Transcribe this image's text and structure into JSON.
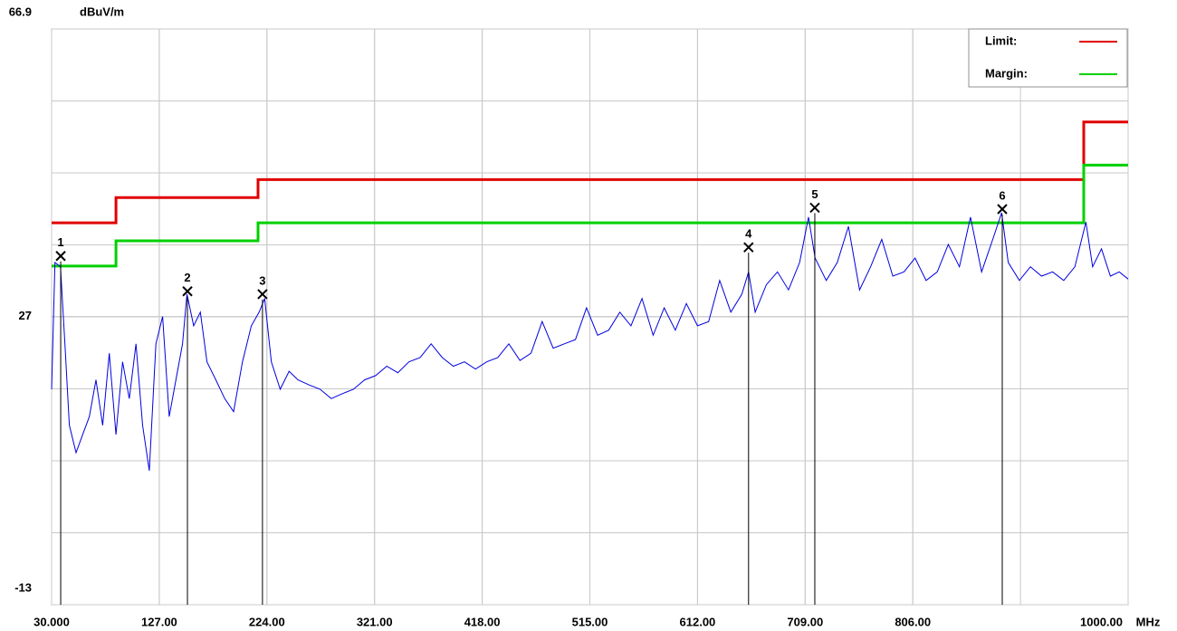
{
  "chart_data": {
    "type": "line",
    "y_unit": "dBuV/m",
    "x_unit": "MHz",
    "xlim": [
      30,
      1000
    ],
    "ylim": [
      -13,
      66.9
    ],
    "yticks": [
      -13,
      27,
      66.9
    ],
    "xticks": [
      {
        "value": 30,
        "label": "30.000"
      },
      {
        "value": 127,
        "label": "127.00"
      },
      {
        "value": 224,
        "label": "224.00"
      },
      {
        "value": 321,
        "label": "321.00"
      },
      {
        "value": 418,
        "label": "418.00"
      },
      {
        "value": 515,
        "label": "515.00"
      },
      {
        "value": 612,
        "label": "612.00"
      },
      {
        "value": 709,
        "label": "709.00"
      },
      {
        "value": 806,
        "label": "806.00"
      },
      {
        "value": 1000,
        "label": "1000.00"
      }
    ],
    "grid": true,
    "legend": "upper right",
    "trace": {
      "color": "#0000e0",
      "x": [
        30,
        33,
        38,
        42,
        46,
        52,
        58,
        64,
        70,
        76,
        82,
        88,
        94,
        100,
        106,
        112,
        118,
        124,
        130,
        136,
        142,
        148,
        152,
        158,
        164,
        170,
        178,
        186,
        194,
        202,
        210,
        217,
        222,
        228,
        236,
        244,
        252,
        262,
        272,
        282,
        292,
        302,
        312,
        322,
        332,
        342,
        352,
        362,
        372,
        382,
        392,
        402,
        412,
        422,
        432,
        442,
        452,
        462,
        472,
        482,
        492,
        502,
        512,
        522,
        532,
        542,
        552,
        562,
        572,
        582,
        592,
        602,
        612,
        622,
        632,
        642,
        652,
        658,
        664,
        674,
        684,
        694,
        704,
        712,
        718,
        728,
        738,
        748,
        758,
        768,
        778,
        788,
        798,
        808,
        818,
        828,
        838,
        848,
        858,
        868,
        878,
        886,
        892,
        902,
        912,
        922,
        932,
        942,
        952,
        962,
        968,
        976,
        984,
        992,
        1000
      ],
      "values": [
        16.9,
        34.5,
        33.9,
        23.2,
        11.9,
        8.1,
        10.6,
        13.1,
        18.2,
        11.9,
        21.9,
        10.6,
        20.7,
        15.6,
        23.2,
        11.9,
        5.6,
        23.2,
        27,
        13.1,
        18.2,
        23.2,
        30.1,
        25.7,
        27.6,
        20.7,
        18.2,
        15.6,
        13.8,
        20.7,
        25.7,
        27.6,
        29.5,
        20.7,
        16.9,
        19.4,
        18.2,
        17.5,
        16.9,
        15.6,
        16.3,
        16.9,
        18.2,
        18.8,
        20.1,
        19.2,
        20.7,
        21.3,
        23.2,
        21.3,
        20.1,
        20.7,
        19.7,
        20.7,
        21.3,
        23.2,
        20.9,
        21.9,
        26.3,
        22.6,
        23.2,
        23.8,
        28.2,
        24.4,
        25.1,
        27.6,
        25.7,
        29.5,
        24.4,
        28.2,
        25.1,
        28.8,
        25.7,
        26.3,
        32,
        27.6,
        30.1,
        33.2,
        27.6,
        31.4,
        33.2,
        30.7,
        34.5,
        40.8,
        35.1,
        32,
        34.5,
        39.5,
        30.7,
        33.9,
        37.7,
        32.6,
        33.2,
        35.1,
        32,
        33.2,
        37,
        33.9,
        40.8,
        33.2,
        37.7,
        41.4,
        34.5,
        32,
        33.9,
        32.6,
        33.2,
        32,
        33.9,
        40.1,
        33.9,
        36.4,
        32.6,
        33.2,
        32.2
      ]
    },
    "series": [
      {
        "name": "Limit:",
        "color": "#e00000",
        "x": [
          30,
          88,
          88,
          216,
          216,
          960,
          960,
          1000
        ],
        "values": [
          40,
          40,
          43.5,
          43.5,
          46,
          46,
          54,
          54
        ]
      },
      {
        "name": "Margin:",
        "color": "#00d000",
        "x": [
          30,
          88,
          88,
          216,
          216,
          960,
          960,
          1000
        ],
        "values": [
          34,
          34,
          37.5,
          37.5,
          40,
          40,
          48,
          48
        ]
      }
    ],
    "markers": [
      {
        "label": "1",
        "x": 38.2,
        "value": 35.4
      },
      {
        "label": "2",
        "x": 152.4,
        "value": 30.5
      },
      {
        "label": "3",
        "x": 220,
        "value": 30.1
      },
      {
        "label": "4",
        "x": 658,
        "value": 36.6
      },
      {
        "label": "5",
        "x": 717.7,
        "value": 42.1
      },
      {
        "label": "6",
        "x": 886.6,
        "value": 41.9
      }
    ]
  }
}
